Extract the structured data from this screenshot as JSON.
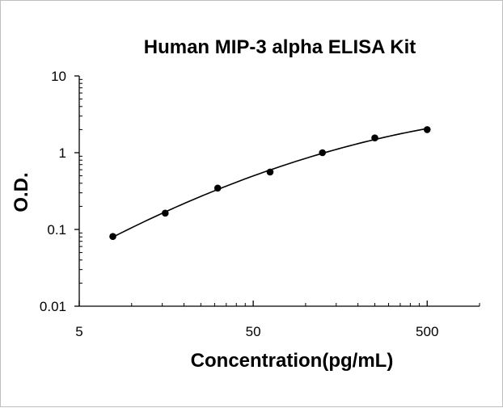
{
  "chart_data": {
    "type": "scatter",
    "title": "Human MIP-3 alpha ELISA Kit",
    "xlabel": "Concentration(pg/mL)",
    "ylabel": "O.D.",
    "x_scale": "log",
    "y_scale": "log",
    "xlim": [
      5,
      1000
    ],
    "ylim": [
      0.01,
      10
    ],
    "x_ticks": [
      {
        "value": 5,
        "label": "5"
      },
      {
        "value": 50,
        "label": "50"
      },
      {
        "value": 500,
        "label": "500"
      }
    ],
    "y_ticks": [
      {
        "value": 0.01,
        "label": "0.01"
      },
      {
        "value": 0.1,
        "label": "0.1"
      },
      {
        "value": 1,
        "label": "1"
      },
      {
        "value": 10,
        "label": "10"
      }
    ],
    "grid": false,
    "legend": "none",
    "series": [
      {
        "points": [
          {
            "x": 7.8,
            "y": 0.081
          },
          {
            "x": 15.6,
            "y": 0.163
          },
          {
            "x": 31.25,
            "y": 0.346
          },
          {
            "x": 62.5,
            "y": 0.56
          },
          {
            "x": 125,
            "y": 1.0
          },
          {
            "x": 250,
            "y": 1.56
          },
          {
            "x": 500,
            "y": 2.0
          }
        ],
        "trendline": "polynomial"
      }
    ],
    "colors": {
      "marker": "#000000",
      "line": "#000000",
      "axis": "#000000"
    }
  }
}
